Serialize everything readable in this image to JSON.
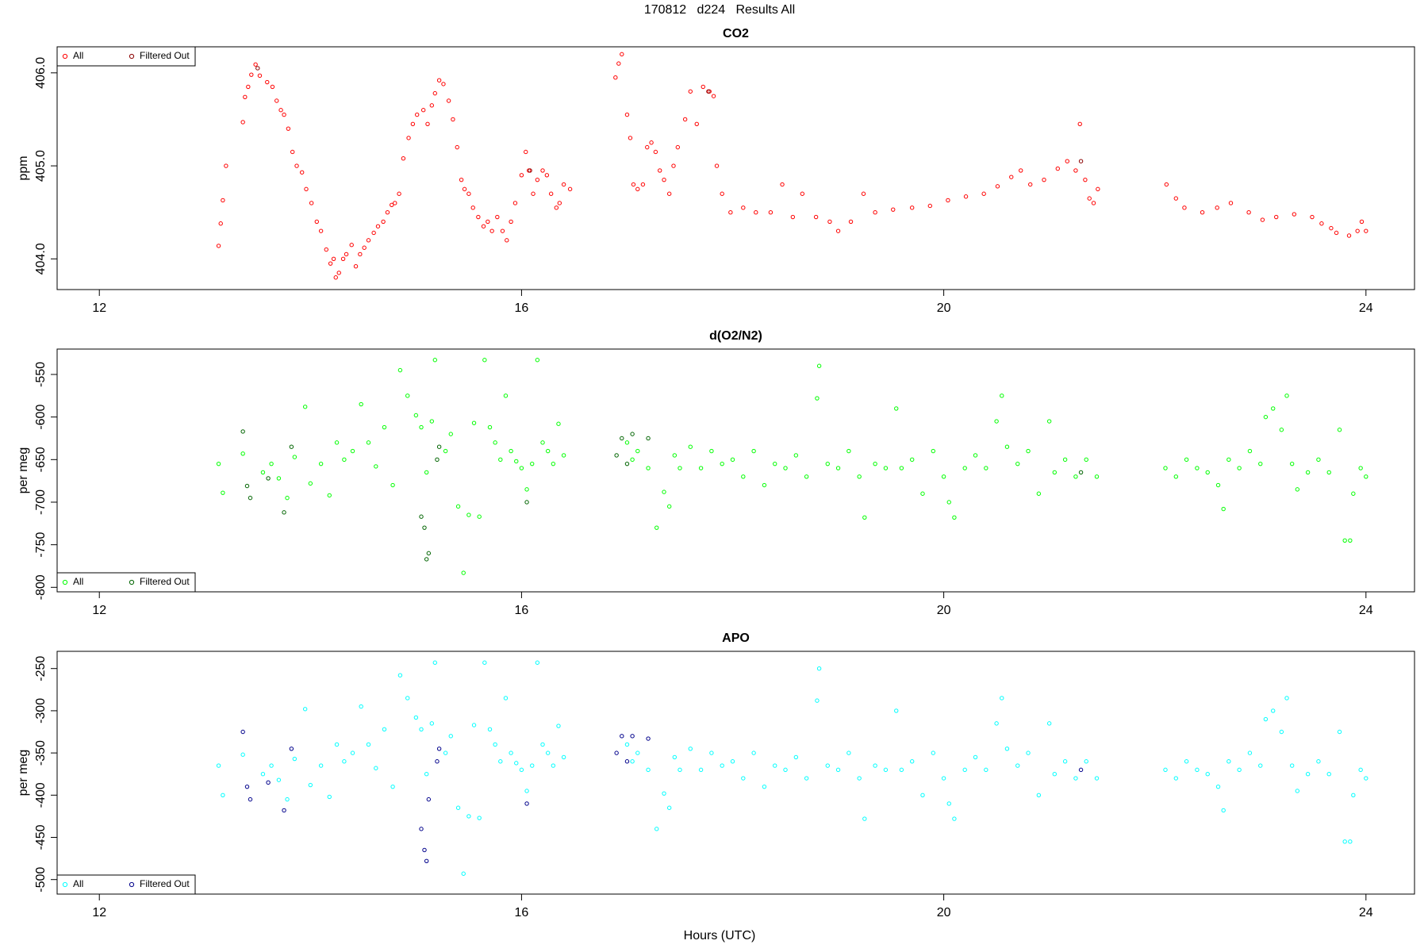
{
  "title": "170812   d224   Results All",
  "x_label": "Hours (UTC)",
  "chart_data": [
    {
      "type": "scatter",
      "title": "CO2",
      "y_label": "ppm",
      "legend": "top-left",
      "xlim": [
        11.6,
        24.46
      ],
      "ylim": [
        403.67,
        406.28
      ],
      "xticks": [
        12,
        16,
        20,
        24
      ],
      "yticks": [
        {
          "value": 404,
          "label": "404.0"
        },
        {
          "value": 405,
          "label": "405.0"
        },
        {
          "value": 406,
          "label": "406.0"
        }
      ],
      "series": [
        {
          "name": "All",
          "color": "#ff0000",
          "x": [
            13.13,
            13.15,
            13.17,
            13.2,
            13.36,
            13.38,
            13.41,
            13.44,
            13.48,
            13.52,
            13.59,
            13.64,
            13.68,
            13.72,
            13.75,
            13.79,
            13.83,
            13.87,
            13.92,
            13.96,
            14.01,
            14.06,
            14.1,
            14.15,
            14.19,
            14.22,
            14.24,
            14.27,
            14.31,
            14.34,
            14.39,
            14.43,
            14.47,
            14.51,
            14.55,
            14.6,
            14.64,
            14.69,
            14.73,
            14.77,
            14.8,
            14.84,
            14.88,
            14.93,
            14.97,
            15.01,
            15.07,
            15.11,
            15.15,
            15.18,
            15.22,
            15.26,
            15.31,
            15.35,
            15.39,
            15.43,
            15.46,
            15.5,
            15.54,
            15.59,
            15.64,
            15.68,
            15.72,
            15.77,
            15.82,
            15.86,
            15.9,
            15.94,
            16.0,
            16.04,
            16.07,
            16.11,
            16.15,
            16.2,
            16.24,
            16.28,
            16.33,
            16.36,
            16.4,
            16.46,
            16.89,
            16.92,
            16.95,
            17.0,
            17.03,
            17.06,
            17.1,
            17.15,
            17.19,
            17.23,
            17.27,
            17.31,
            17.35,
            17.4,
            17.44,
            17.48,
            17.55,
            17.6,
            17.66,
            17.72,
            17.78,
            17.82,
            17.85,
            17.9,
            17.98,
            18.1,
            18.22,
            18.36,
            18.47,
            18.57,
            18.66,
            18.79,
            18.92,
            19.0,
            19.12,
            19.24,
            19.35,
            19.52,
            19.7,
            19.87,
            20.04,
            20.21,
            20.38,
            20.51,
            20.64,
            20.73,
            20.82,
            20.95,
            21.08,
            21.17,
            21.25,
            21.29,
            21.34,
            21.38,
            21.42,
            21.46,
            22.11,
            22.2,
            22.28,
            22.45,
            22.59,
            22.72,
            22.89,
            23.02,
            23.15,
            23.32,
            23.49,
            23.58,
            23.67,
            23.72,
            23.84,
            23.92,
            23.96,
            24.0
          ],
          "values": [
            404.14,
            404.38,
            404.63,
            405.0,
            405.47,
            405.74,
            405.85,
            405.98,
            406.09,
            405.97,
            405.9,
            405.85,
            405.7,
            405.6,
            405.55,
            405.4,
            405.15,
            405.0,
            404.93,
            404.75,
            404.6,
            404.4,
            404.3,
            404.1,
            403.95,
            404.0,
            403.8,
            403.85,
            404.0,
            404.05,
            404.15,
            403.92,
            404.05,
            404.12,
            404.2,
            404.28,
            404.35,
            404.4,
            404.5,
            404.58,
            404.6,
            404.7,
            405.08,
            405.3,
            405.45,
            405.55,
            405.6,
            405.45,
            405.65,
            405.78,
            405.92,
            405.88,
            405.7,
            405.5,
            405.2,
            404.85,
            404.75,
            404.7,
            404.55,
            404.45,
            404.35,
            404.4,
            404.3,
            404.45,
            404.3,
            404.2,
            404.4,
            404.6,
            404.9,
            405.15,
            404.95,
            404.7,
            404.85,
            404.95,
            404.9,
            404.7,
            404.55,
            404.6,
            404.8,
            404.75,
            405.95,
            406.1,
            406.2,
            405.55,
            405.3,
            404.8,
            404.75,
            404.8,
            405.2,
            405.25,
            405.15,
            404.95,
            404.85,
            404.7,
            405.0,
            405.2,
            405.5,
            405.8,
            405.45,
            405.85,
            405.8,
            405.75,
            405.0,
            404.7,
            404.5,
            404.55,
            404.5,
            404.5,
            404.8,
            404.45,
            404.7,
            404.45,
            404.4,
            404.3,
            404.4,
            404.7,
            404.5,
            404.53,
            404.55,
            404.57,
            404.63,
            404.67,
            404.7,
            404.78,
            404.88,
            404.95,
            404.8,
            404.85,
            404.97,
            405.05,
            404.95,
            405.45,
            404.85,
            404.65,
            404.6,
            404.75,
            404.8,
            404.65,
            404.55,
            404.5,
            404.55,
            404.6,
            404.5,
            404.42,
            404.45,
            404.48,
            404.45,
            404.38,
            404.33,
            404.28,
            404.25,
            404.3,
            404.4,
            404.3
          ]
        },
        {
          "name": "Filtered Out",
          "color": "#8b0000",
          "x": [
            13.5,
            16.08,
            17.77,
            21.3
          ],
          "values": [
            406.05,
            404.95,
            405.8,
            405.05
          ]
        }
      ]
    },
    {
      "type": "scatter",
      "title": "d(O2/N2)",
      "y_label": "per meg",
      "legend": "bottom-left",
      "xlim": [
        11.6,
        24.46
      ],
      "ylim": [
        -805.3,
        -520.2
      ],
      "xticks": [
        12,
        16,
        20,
        24
      ],
      "yticks": [
        -800,
        -750,
        -700,
        -650,
        -600,
        -550
      ],
      "series": [
        {
          "name": "All",
          "color": "#00ff00",
          "x": [
            13.13,
            13.17,
            13.36,
            13.55,
            13.63,
            13.7,
            13.78,
            13.85,
            13.95,
            14.0,
            14.1,
            14.18,
            14.25,
            14.32,
            14.4,
            14.48,
            14.55,
            14.62,
            14.7,
            14.78,
            14.85,
            14.92,
            15.0,
            15.05,
            15.1,
            15.15,
            15.18,
            15.28,
            15.33,
            15.4,
            15.45,
            15.5,
            15.55,
            15.6,
            15.65,
            15.7,
            15.75,
            15.8,
            15.85,
            15.9,
            15.95,
            16.0,
            16.05,
            16.1,
            16.15,
            16.2,
            16.25,
            16.3,
            16.35,
            16.4,
            17.0,
            17.05,
            17.1,
            17.2,
            17.28,
            17.35,
            17.4,
            17.45,
            17.5,
            17.6,
            17.7,
            17.8,
            17.9,
            18.0,
            18.1,
            18.2,
            18.3,
            18.4,
            18.5,
            18.6,
            18.7,
            18.8,
            18.82,
            18.9,
            19.0,
            19.1,
            19.2,
            19.25,
            19.35,
            19.45,
            19.55,
            19.6,
            19.7,
            19.8,
            19.9,
            20.0,
            20.05,
            20.1,
            20.2,
            20.3,
            20.4,
            20.5,
            20.55,
            20.6,
            20.7,
            20.8,
            20.9,
            21.0,
            21.05,
            21.15,
            21.25,
            21.35,
            21.45,
            22.1,
            22.2,
            22.3,
            22.4,
            22.5,
            22.6,
            22.65,
            22.7,
            22.8,
            22.9,
            23.0,
            23.05,
            23.12,
            23.2,
            23.25,
            23.3,
            23.35,
            23.45,
            23.55,
            23.65,
            23.75,
            23.8,
            23.85,
            23.88,
            23.95,
            24.0
          ],
          "values": [
            -655,
            -689,
            -643,
            -665,
            -655,
            -672,
            -695,
            -647,
            -588,
            -678,
            -655,
            -692,
            -630,
            -650,
            -640,
            -585,
            -630,
            -658,
            -612,
            -680,
            -545,
            -575,
            -598,
            -612,
            -665,
            -605,
            -533,
            -640,
            -620,
            -705,
            -783,
            -715,
            -607,
            -717,
            -533,
            -612,
            -630,
            -650,
            -575,
            -640,
            -652,
            -660,
            -685,
            -655,
            -533,
            -630,
            -640,
            -655,
            -608,
            -645,
            -630,
            -650,
            -640,
            -660,
            -730,
            -688,
            -705,
            -645,
            -660,
            -635,
            -660,
            -640,
            -655,
            -650,
            -670,
            -640,
            -680,
            -655,
            -660,
            -645,
            -670,
            -578,
            -540,
            -655,
            -660,
            -640,
            -670,
            -718,
            -655,
            -660,
            -590,
            -660,
            -650,
            -690,
            -640,
            -670,
            -700,
            -718,
            -660,
            -645,
            -660,
            -605,
            -575,
            -635,
            -655,
            -640,
            -690,
            -605,
            -665,
            -650,
            -670,
            -650,
            -670,
            -660,
            -670,
            -650,
            -660,
            -665,
            -680,
            -708,
            -650,
            -660,
            -640,
            -655,
            -600,
            -590,
            -615,
            -575,
            -655,
            -685,
            -665,
            -650,
            -665,
            -615,
            -745,
            -745,
            -690,
            -660,
            -670
          ]
        },
        {
          "name": "Filtered Out",
          "color": "#006400",
          "x": [
            13.36,
            13.4,
            13.43,
            13.6,
            13.75,
            13.82,
            15.05,
            15.08,
            15.12,
            15.1,
            15.2,
            15.22,
            16.05,
            16.9,
            16.95,
            17.0,
            17.05,
            17.2,
            21.3
          ],
          "values": [
            -617,
            -681,
            -695,
            -672,
            -712,
            -635,
            -717,
            -730,
            -760,
            -767,
            -650,
            -635,
            -700,
            -645,
            -625,
            -655,
            -620,
            -625,
            -665
          ]
        }
      ]
    },
    {
      "type": "scatter",
      "title": "APO",
      "y_label": "per meg",
      "legend": "bottom-left",
      "xlim": [
        11.6,
        24.46
      ],
      "ylim": [
        -517.2,
        -229.6
      ],
      "xticks": [
        12,
        16,
        20,
        24
      ],
      "yticks": [
        -500,
        -450,
        -400,
        -350,
        -300,
        -250
      ],
      "series": [
        {
          "name": "All",
          "color": "#00ffff",
          "x": [
            13.13,
            13.17,
            13.36,
            13.55,
            13.63,
            13.7,
            13.78,
            13.85,
            13.95,
            14.0,
            14.1,
            14.18,
            14.25,
            14.32,
            14.4,
            14.48,
            14.55,
            14.62,
            14.7,
            14.78,
            14.85,
            14.92,
            15.0,
            15.05,
            15.1,
            15.15,
            15.18,
            15.28,
            15.33,
            15.4,
            15.45,
            15.5,
            15.55,
            15.6,
            15.65,
            15.7,
            15.75,
            15.8,
            15.85,
            15.9,
            15.95,
            16.0,
            16.05,
            16.1,
            16.15,
            16.2,
            16.25,
            16.3,
            16.35,
            16.4,
            17.0,
            17.05,
            17.1,
            17.2,
            17.28,
            17.35,
            17.4,
            17.45,
            17.5,
            17.6,
            17.7,
            17.8,
            17.9,
            18.0,
            18.1,
            18.2,
            18.3,
            18.4,
            18.5,
            18.6,
            18.7,
            18.8,
            18.82,
            18.9,
            19.0,
            19.1,
            19.2,
            19.25,
            19.35,
            19.45,
            19.55,
            19.6,
            19.7,
            19.8,
            19.9,
            20.0,
            20.05,
            20.1,
            20.2,
            20.3,
            20.4,
            20.5,
            20.55,
            20.6,
            20.7,
            20.8,
            20.9,
            21.0,
            21.05,
            21.15,
            21.25,
            21.35,
            21.45,
            22.1,
            22.2,
            22.3,
            22.4,
            22.5,
            22.6,
            22.65,
            22.7,
            22.8,
            22.9,
            23.0,
            23.05,
            23.12,
            23.2,
            23.25,
            23.3,
            23.35,
            23.45,
            23.55,
            23.65,
            23.75,
            23.8,
            23.85,
            23.88,
            23.95,
            24.0
          ],
          "values": [
            -365,
            -400,
            -352,
            -375,
            -365,
            -382,
            -405,
            -357,
            -298,
            -388,
            -365,
            -402,
            -340,
            -360,
            -350,
            -295,
            -340,
            -368,
            -322,
            -390,
            -258,
            -285,
            -308,
            -322,
            -375,
            -315,
            -243,
            -350,
            -330,
            -415,
            -493,
            -425,
            -317,
            -427,
            -243,
            -322,
            -340,
            -360,
            -285,
            -350,
            -362,
            -370,
            -395,
            -365,
            -243,
            -340,
            -350,
            -365,
            -318,
            -355,
            -340,
            -360,
            -350,
            -370,
            -440,
            -398,
            -415,
            -355,
            -370,
            -345,
            -370,
            -350,
            -365,
            -360,
            -380,
            -350,
            -390,
            -365,
            -370,
            -355,
            -380,
            -288,
            -250,
            -365,
            -370,
            -350,
            -380,
            -428,
            -365,
            -370,
            -300,
            -370,
            -360,
            -400,
            -350,
            -380,
            -410,
            -428,
            -370,
            -355,
            -370,
            -315,
            -285,
            -345,
            -365,
            -350,
            -400,
            -315,
            -375,
            -360,
            -380,
            -360,
            -380,
            -370,
            -380,
            -360,
            -370,
            -375,
            -390,
            -418,
            -360,
            -370,
            -350,
            -365,
            -310,
            -300,
            -325,
            -285,
            -365,
            -395,
            -375,
            -360,
            -375,
            -325,
            -455,
            -455,
            -400,
            -370,
            -380
          ]
        },
        {
          "name": "Filtered Out",
          "color": "#00008b",
          "x": [
            13.36,
            13.4,
            13.43,
            13.6,
            13.75,
            13.82,
            15.05,
            15.08,
            15.12,
            15.1,
            15.2,
            15.22,
            16.05,
            16.9,
            16.95,
            17.0,
            17.05,
            17.2,
            21.3
          ],
          "values": [
            -325,
            -390,
            -405,
            -385,
            -418,
            -345,
            -440,
            -465,
            -405,
            -478,
            -360,
            -345,
            -410,
            -350,
            -330,
            -360,
            -330,
            -333,
            -370
          ]
        }
      ]
    }
  ]
}
